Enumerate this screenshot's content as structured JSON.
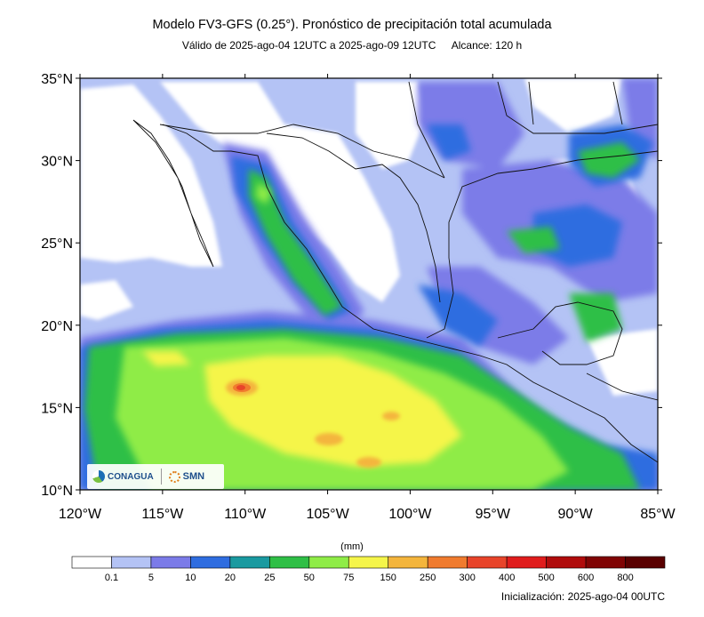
{
  "header": {
    "title": "Modelo FV3-GFS (0.25°). Pronóstico de precipitación total acumulada",
    "valid": "Válido de 2025-ago-04 12UTC a 2025-ago-09 12UTC",
    "range": "Alcance: 120 h"
  },
  "map": {
    "region": "Mexico and surrounding Pacific/Gulf",
    "lat_labels": [
      "35°N",
      "30°N",
      "25°N",
      "20°N",
      "15°N",
      "10°N"
    ],
    "lon_labels": [
      "120°W",
      "115°W",
      "110°W",
      "105°W",
      "100°W",
      "95°W",
      "90°W",
      "85°W"
    ],
    "lat_range": [
      10,
      35
    ],
    "lon_range": [
      -120,
      -85
    ]
  },
  "colorbar": {
    "unit": "(mm)",
    "ticks": [
      "0.1",
      "5",
      "10",
      "20",
      "25",
      "50",
      "75",
      "150",
      "250",
      "300",
      "400",
      "500",
      "600",
      "800"
    ],
    "colors": [
      "#ffffff",
      "#b4c3f5",
      "#7b7be8",
      "#2f6de0",
      "#1a9aa0",
      "#2fbf46",
      "#8fec47",
      "#f5f54a",
      "#f4b53c",
      "#f07b2e",
      "#e8442a",
      "#e01c1c",
      "#b00c0c",
      "#800404",
      "#5a0000"
    ]
  },
  "logos": {
    "conagua": "CONAGUA",
    "smn": "SMN"
  },
  "footer": {
    "init": "Inicialización: 2025-ago-04 00UTC"
  }
}
